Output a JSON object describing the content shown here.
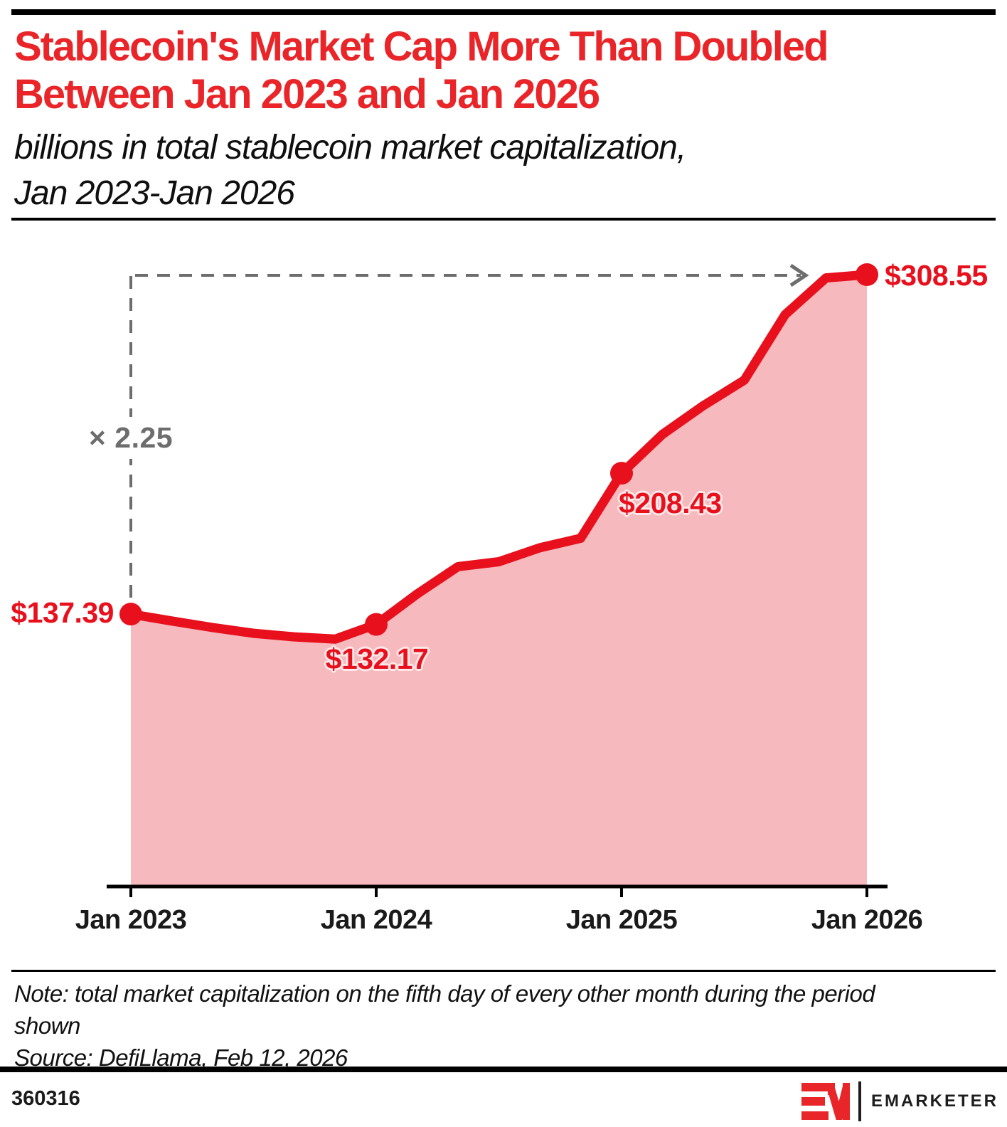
{
  "header": {
    "title_line1": "Stablecoin's Market Cap More Than Doubled",
    "title_line2": "Between Jan 2023 and Jan 2026",
    "subtitle_line1": "billions in total stablecoin market capitalization,",
    "subtitle_line2": "Jan 2023-Jan 2026"
  },
  "chart_data": {
    "type": "area",
    "title": "billions in total stablecoin market capitalization, Jan 2023-Jan 2026",
    "x": [
      "Jan 2023",
      "Mar 2023",
      "May 2023",
      "Jul 2023",
      "Sep 2023",
      "Nov 2023",
      "Jan 2024",
      "Mar 2024",
      "May 2024",
      "Jul 2024",
      "Sep 2024",
      "Nov 2024",
      "Jan 2025",
      "Mar 2025",
      "May 2025",
      "Jul 2025",
      "Sep 2025",
      "Nov 2025",
      "Jan 2026"
    ],
    "values": [
      137.39,
      133.9,
      130.6,
      127.7,
      125.9,
      124.8,
      132.17,
      147.5,
      161.3,
      163.8,
      170.8,
      175.6,
      208.43,
      228.0,
      242.5,
      255.3,
      288.4,
      306.9,
      308.55
    ],
    "x_tick_labels": [
      "Jan 2023",
      "Jan 2024",
      "Jan 2025",
      "Jan 2026"
    ],
    "ylim": [
      0,
      330
    ],
    "grid": "off",
    "legend": "none",
    "labeled_points": [
      {
        "x": "Jan 2023",
        "value": 137.39,
        "label": "$137.39"
      },
      {
        "x": "Jan 2024",
        "value": 132.17,
        "label": "$132.17"
      },
      {
        "x": "Jan 2025",
        "value": 208.43,
        "label": "$208.43"
      },
      {
        "x": "Jan 2026",
        "value": 308.55,
        "label": "$308.55"
      }
    ],
    "annotation": {
      "multiplier_label": "× 2.25"
    }
  },
  "colors": {
    "line_red": "#e8101c",
    "area_pink": "#f6b9bd",
    "title_red": "#e92529",
    "annotation_gray": "#6d6d6d",
    "axis_black": "#000000",
    "logo_red": "#e8262a"
  },
  "footnote": {
    "note_line1": "Note: total market capitalization on the fifth day of every other month during the period",
    "note_line2": "shown",
    "source": "Source: DefiLlama, Feb 12, 2026"
  },
  "footer": {
    "chart_id": "360316",
    "brand": "EMARKETER"
  }
}
